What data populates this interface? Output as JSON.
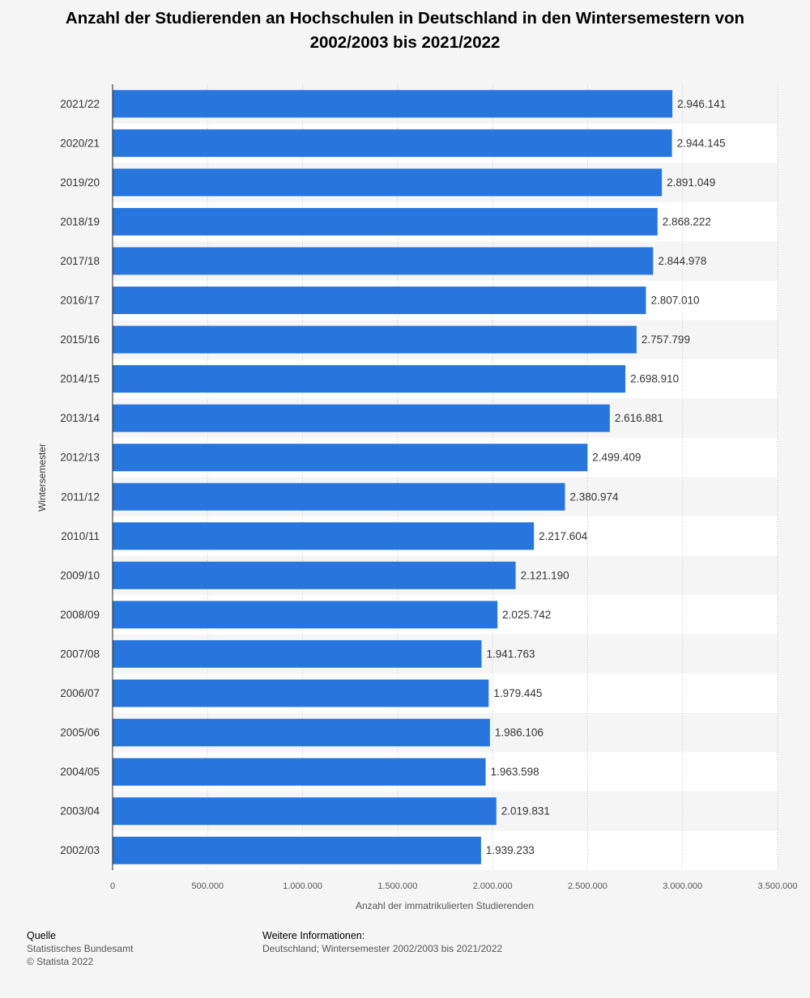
{
  "chart_data": {
    "type": "bar",
    "orientation": "horizontal",
    "title": "Anzahl der Studierenden an Hochschulen in Deutschland in den Wintersemestern von 2002/2003 bis 2021/2022",
    "xlabel": "Anzahl der immatrikulierten Studierenden",
    "ylabel": "Wintersemester",
    "xlim": [
      0,
      3500000
    ],
    "xticks": [
      0,
      500000,
      1000000,
      1500000,
      2000000,
      2500000,
      3000000,
      3500000
    ],
    "xtick_labels": [
      "0",
      "500.000",
      "1.000.000",
      "1.500.000",
      "2.000.000",
      "2.500.000",
      "3.000.000",
      "3.500.000"
    ],
    "grid": true,
    "bar_color": "#2876dd",
    "categories": [
      "2021/22",
      "2020/21",
      "2019/20",
      "2018/19",
      "2017/18",
      "2016/17",
      "2015/16",
      "2014/15",
      "2013/14",
      "2012/13",
      "2011/12",
      "2010/11",
      "2009/10",
      "2008/09",
      "2007/08",
      "2006/07",
      "2005/06",
      "2004/05",
      "2003/04",
      "2002/03"
    ],
    "values": [
      2946141,
      2944145,
      2891049,
      2868222,
      2844978,
      2807010,
      2757799,
      2698910,
      2616881,
      2499409,
      2380974,
      2217604,
      2121190,
      2025742,
      1941763,
      1979445,
      1986106,
      1963598,
      2019831,
      1939233
    ],
    "value_labels": [
      "2.946.141",
      "2.944.145",
      "2.891.049",
      "2.868.222",
      "2.844.978",
      "2.807.010",
      "2.757.799",
      "2.698.910",
      "2.616.881",
      "2.499.409",
      "2.380.974",
      "2.217.604",
      "2.121.190",
      "2.025.742",
      "1.941.763",
      "1.979.445",
      "1.986.106",
      "1.963.598",
      "2.019.831",
      "1.939.233"
    ]
  },
  "footer": {
    "source_heading": "Quelle",
    "source_name": "Statistisches Bundesamt",
    "copyright": "© Statista 2022",
    "info_heading": "Weitere Informationen:",
    "info_text": "Deutschland; Wintersemester 2002/2003 bis 2021/2022"
  }
}
